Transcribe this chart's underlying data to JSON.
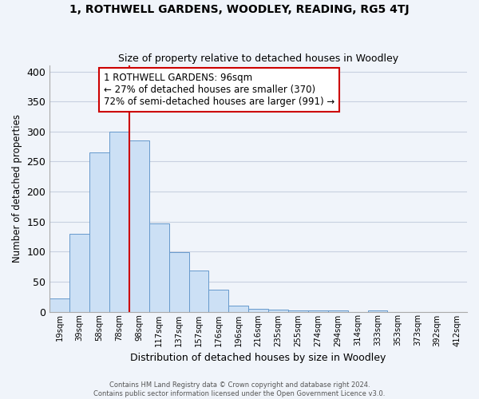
{
  "title": "1, ROTHWELL GARDENS, WOODLEY, READING, RG5 4TJ",
  "subtitle": "Size of property relative to detached houses in Woodley",
  "xlabel": "Distribution of detached houses by size in Woodley",
  "ylabel": "Number of detached properties",
  "bar_labels": [
    "19sqm",
    "39sqm",
    "58sqm",
    "78sqm",
    "98sqm",
    "117sqm",
    "137sqm",
    "157sqm",
    "176sqm",
    "196sqm",
    "216sqm",
    "235sqm",
    "255sqm",
    "274sqm",
    "294sqm",
    "314sqm",
    "333sqm",
    "353sqm",
    "373sqm",
    "392sqm",
    "412sqm"
  ],
  "bar_heights": [
    22,
    130,
    265,
    300,
    285,
    147,
    99,
    68,
    37,
    10,
    5,
    3,
    2,
    2,
    2,
    0,
    2,
    0,
    0,
    0,
    0
  ],
  "bar_color": "#cce0f5",
  "bar_edge_color": "#6699cc",
  "vline_x": 4,
  "vline_color": "#cc0000",
  "annotation_line1": "1 ROTHWELL GARDENS: 96sqm",
  "annotation_line2": "← 27% of detached houses are smaller (370)",
  "annotation_line3": "72% of semi-detached houses are larger (991) →",
  "annotation_box_color": "white",
  "annotation_box_edge": "#cc0000",
  "ylim": [
    0,
    410
  ],
  "yticks": [
    0,
    50,
    100,
    150,
    200,
    250,
    300,
    350,
    400
  ],
  "footer_line1": "Contains HM Land Registry data © Crown copyright and database right 2024.",
  "footer_line2": "Contains public sector information licensed under the Open Government Licence v3.0.",
  "bg_color": "#f0f4fa",
  "grid_color": "#c8d0e0"
}
